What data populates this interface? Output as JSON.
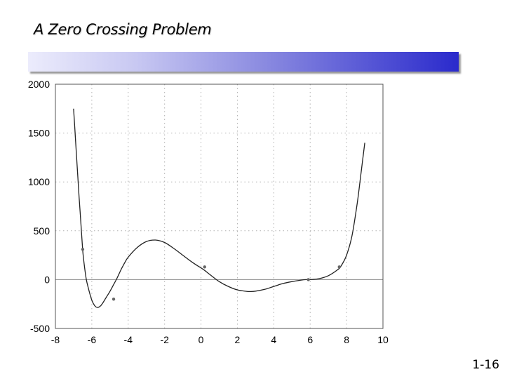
{
  "slide": {
    "title": "A Zero Crossing Problem",
    "number": "1-16"
  },
  "colors": {
    "curve": "#222222",
    "grid": "#b0b0b0",
    "zero_line": "#888888",
    "markers": "#666666"
  },
  "chart_data": {
    "type": "line",
    "title": "",
    "xlabel": "",
    "ylabel": "",
    "xlim": [
      -8,
      10
    ],
    "ylim": [
      -500,
      2000
    ],
    "grid": true,
    "x_ticks": [
      -8,
      -6,
      -4,
      -2,
      0,
      2,
      4,
      6,
      8,
      10
    ],
    "y_ticks": [
      -500,
      0,
      500,
      1000,
      1500,
      2000
    ],
    "series": [
      {
        "x": [
          -7.0,
          -6.9,
          -6.8,
          -6.7,
          -6.6,
          -6.5,
          -6.4,
          -6.3,
          -6.2,
          -6.1,
          -6.0,
          -5.9,
          -5.8,
          -5.7,
          -5.6,
          -5.5,
          -5.4,
          -5.3,
          -5.2,
          -5.0,
          -4.8,
          -4.6,
          -4.4,
          -4.2,
          -4.0,
          -3.5,
          -3.0,
          -2.5,
          -2.0,
          -1.5,
          -1.0,
          -0.5,
          0.0,
          0.2,
          0.5,
          1.0,
          1.5,
          2.0,
          2.5,
          2.7,
          3.0,
          3.5,
          4.0,
          4.5,
          5.0,
          5.5,
          5.8,
          6.0,
          6.5,
          7.0,
          7.5,
          7.7,
          8.0,
          8.3,
          8.6,
          8.8,
          9.0
        ],
        "y": [
          1750,
          1450,
          1150,
          850,
          580,
          300,
          130,
          0,
          -80,
          -150,
          -210,
          -250,
          -275,
          -285,
          -280,
          -265,
          -240,
          -210,
          -180,
          -120,
          -50,
          20,
          100,
          170,
          230,
          330,
          390,
          405,
          380,
          320,
          250,
          180,
          120,
          95,
          50,
          -20,
          -70,
          -105,
          -120,
          -122,
          -118,
          -100,
          -70,
          -40,
          -20,
          -5,
          0,
          0,
          10,
          40,
          100,
          140,
          250,
          450,
          800,
          1100,
          1400
        ]
      }
    ],
    "markers": {
      "x": [
        -6.5,
        -4.8,
        0.2,
        5.9,
        7.6
      ],
      "y": [
        310,
        -200,
        130,
        0,
        130
      ]
    }
  }
}
